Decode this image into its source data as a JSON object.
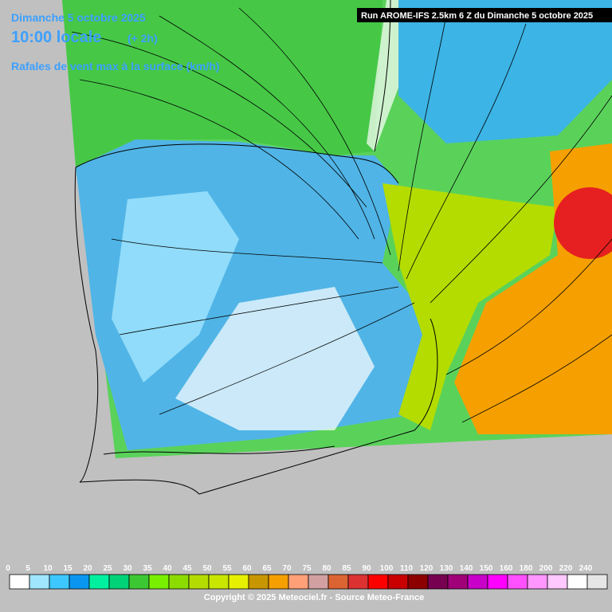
{
  "header": {
    "date": "Dimanche 5 octobre 2025",
    "time": "10:00 locale",
    "offset": "(+ 2h)",
    "parameter": "Rafales de vent max à la surface (km/h)",
    "run": "Run AROME-IFS 2.5km 6 Z du Dimanche 5 octobre 2025"
  },
  "legend": {
    "labels": [
      0,
      5,
      10,
      15,
      20,
      25,
      30,
      35,
      40,
      45,
      50,
      55,
      60,
      65,
      70,
      75,
      80,
      85,
      90,
      100,
      110,
      120,
      130,
      140,
      150,
      160,
      180,
      200,
      220,
      240
    ],
    "colors": [
      "#ffffff",
      "#a0e6ff",
      "#3cc8ff",
      "#0a96f0",
      "#00f0a0",
      "#00d278",
      "#3cc832",
      "#78f000",
      "#8cdc00",
      "#b4dc00",
      "#c8e600",
      "#e6f000",
      "#c89600",
      "#f5a000",
      "#ffa078",
      "#d2a0a0",
      "#dc6432",
      "#dc3232",
      "#ff0000",
      "#c80000",
      "#8c0000",
      "#780050",
      "#a00078",
      "#c800c8",
      "#ff00ff",
      "#ff50ff",
      "#ff96ff",
      "#ffc8ff",
      "#ffffff",
      "#e6e6e6"
    ]
  },
  "footer": {
    "copyright": "Copyright © 2025 Meteociel.fr - Source Meteo-France"
  }
}
